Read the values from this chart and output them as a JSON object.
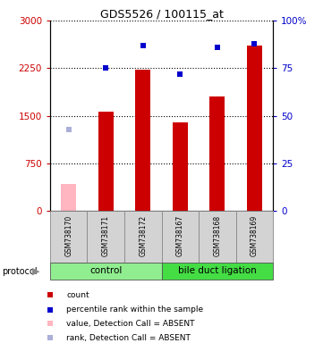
{
  "title": "GDS5526 / 100115_at",
  "samples": [
    "GSM738170",
    "GSM738171",
    "GSM738172",
    "GSM738167",
    "GSM738168",
    "GSM738169"
  ],
  "count_values": [
    null,
    1560,
    2230,
    1390,
    1800,
    2610
  ],
  "count_absent": [
    430,
    null,
    null,
    null,
    null,
    null
  ],
  "rank_values": [
    null,
    75,
    87,
    72,
    86,
    88
  ],
  "rank_absent": [
    43,
    null,
    null,
    null,
    null,
    null
  ],
  "groups": [
    {
      "label": "control",
      "span": [
        0,
        3
      ],
      "color": "#90ee90"
    },
    {
      "label": "bile duct ligation",
      "span": [
        3,
        6
      ],
      "color": "#44dd44"
    }
  ],
  "ylim_left": [
    0,
    3000
  ],
  "ylim_right": [
    0,
    100
  ],
  "yticks_left": [
    0,
    750,
    1500,
    2250,
    3000
  ],
  "yticks_right": [
    0,
    25,
    50,
    75,
    100
  ],
  "bar_color": "#cc0000",
  "bar_absent_color": "#ffb6c1",
  "rank_color": "#0000cc",
  "rank_absent_color": "#aab0d8",
  "legend_items": [
    {
      "color": "#cc0000",
      "label": "count"
    },
    {
      "color": "#0000cc",
      "label": "percentile rank within the sample"
    },
    {
      "color": "#ffb6c1",
      "label": "value, Detection Call = ABSENT"
    },
    {
      "color": "#aab0d8",
      "label": "rank, Detection Call = ABSENT"
    }
  ],
  "gray_box_color": "#d3d3d3",
  "protocol_label": "protocol"
}
